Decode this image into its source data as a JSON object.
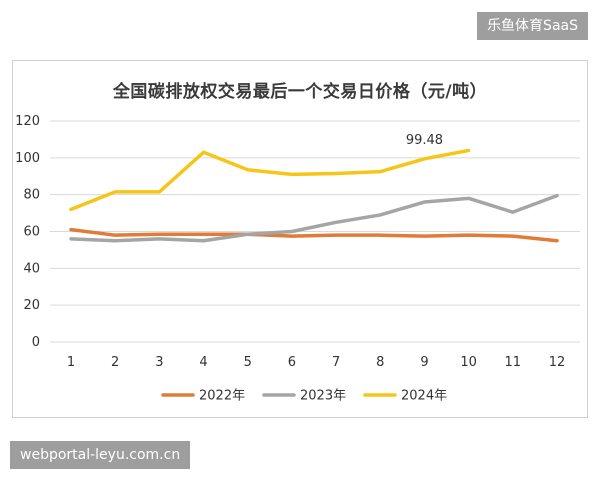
{
  "watermarks": {
    "top": "乐鱼体育SaaS",
    "bottom": "webportal-leyu.com.cn"
  },
  "chart_data": {
    "type": "line",
    "title": "全国碳排放权交易最后一个交易日价格（元/吨）",
    "xlabel": "",
    "ylabel": "",
    "x": [
      "1",
      "2",
      "3",
      "4",
      "5",
      "6",
      "7",
      "8",
      "9",
      "10",
      "11",
      "12"
    ],
    "ylim": [
      0,
      120
    ],
    "yticks": [
      "0",
      "20",
      "40",
      "60",
      "80",
      "100",
      "120"
    ],
    "grid": true,
    "legend_position": "bottom",
    "series": [
      {
        "name": "2022年",
        "color": "#e07b39",
        "values": [
          61,
          58,
          58.5,
          58.5,
          58.5,
          57.5,
          58,
          58,
          57.5,
          58,
          57.5,
          55
        ]
      },
      {
        "name": "2023年",
        "color": "#a5a5a5",
        "values": [
          56,
          55,
          56,
          55,
          58.5,
          60,
          65,
          69,
          76,
          78,
          70.5,
          79.5
        ]
      },
      {
        "name": "2024年",
        "color": "#f5c518",
        "values": [
          72,
          81.5,
          81.5,
          103,
          93.5,
          91,
          91.5,
          92.5,
          99.48,
          104,
          null,
          null
        ]
      }
    ],
    "annotations": [
      {
        "text": "99.48",
        "series": 2,
        "index": 8
      }
    ]
  }
}
